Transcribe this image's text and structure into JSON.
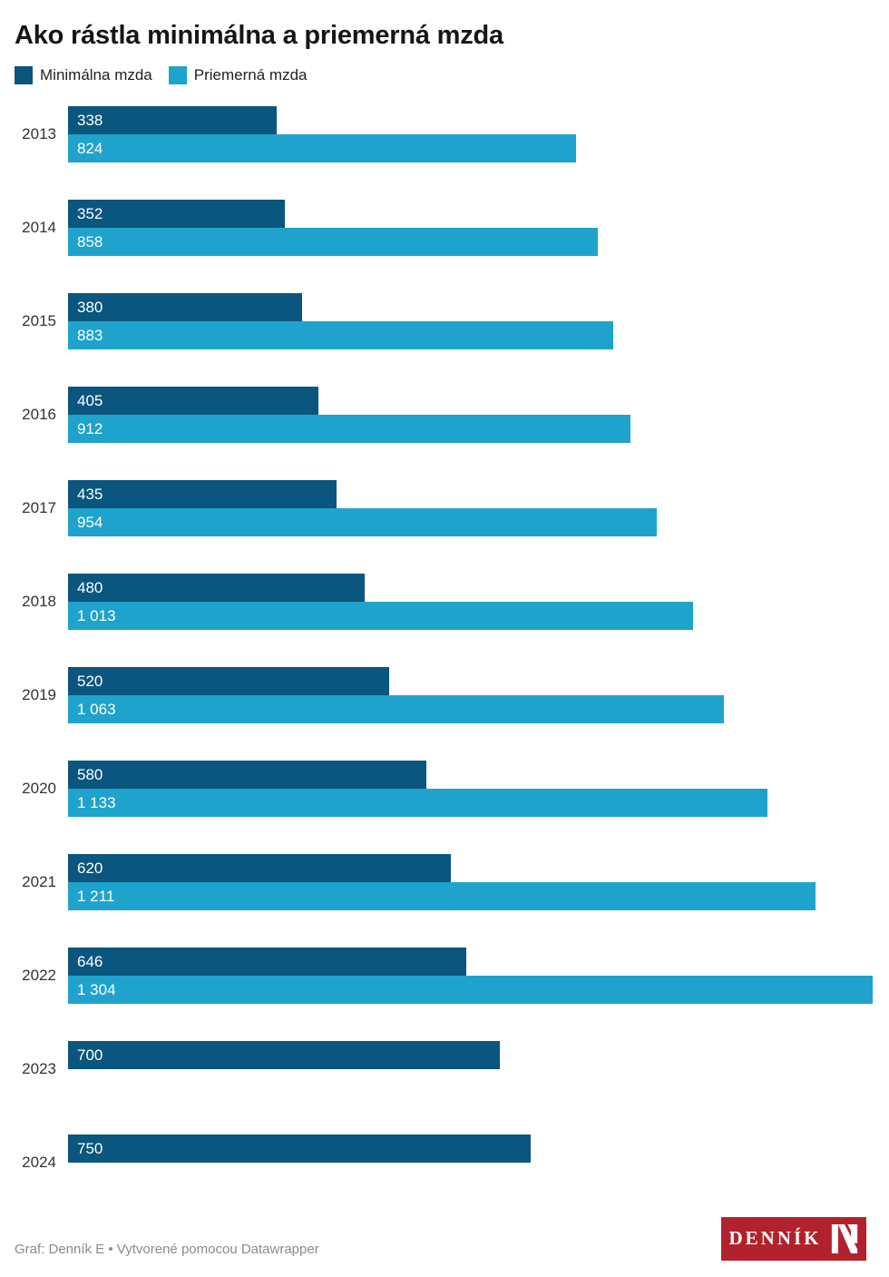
{
  "header": {
    "title": "Ako rástla minimálna a priemerná mzda"
  },
  "chart_data": {
    "type": "bar",
    "orientation": "horizontal",
    "title": "Ako rástla minimálna a priemerná mzda",
    "categories": [
      "2013",
      "2014",
      "2015",
      "2016",
      "2017",
      "2018",
      "2019",
      "2020",
      "2021",
      "2022",
      "2023",
      "2024"
    ],
    "series": [
      {
        "name": "Minimálna mzda",
        "color": "#0a567e",
        "values": [
          338,
          352,
          380,
          405,
          435,
          480,
          520,
          580,
          620,
          646,
          700,
          750
        ],
        "labels": [
          "338",
          "352",
          "380",
          "405",
          "435",
          "480",
          "520",
          "580",
          "620",
          "646",
          "700",
          "750"
        ]
      },
      {
        "name": "Priemerná mzda",
        "color": "#1fa3cc",
        "values": [
          824,
          858,
          883,
          912,
          954,
          1013,
          1063,
          1133,
          1211,
          1304,
          null,
          null
        ],
        "labels": [
          "824",
          "858",
          "883",
          "912",
          "954",
          "1 013",
          "1 063",
          "1 133",
          "1 211",
          "1 304",
          null,
          null
        ]
      }
    ],
    "xmax": 1304,
    "grid": false,
    "legend_position": "top",
    "value_labels_inside": true
  },
  "footer": {
    "attribution": "Graf: Denník E • Vytvorené pomocou Datawrapper",
    "logo": {
      "text": "DENNÍK",
      "background": "#b2222d",
      "icon": "dennik-n-monogram"
    }
  }
}
